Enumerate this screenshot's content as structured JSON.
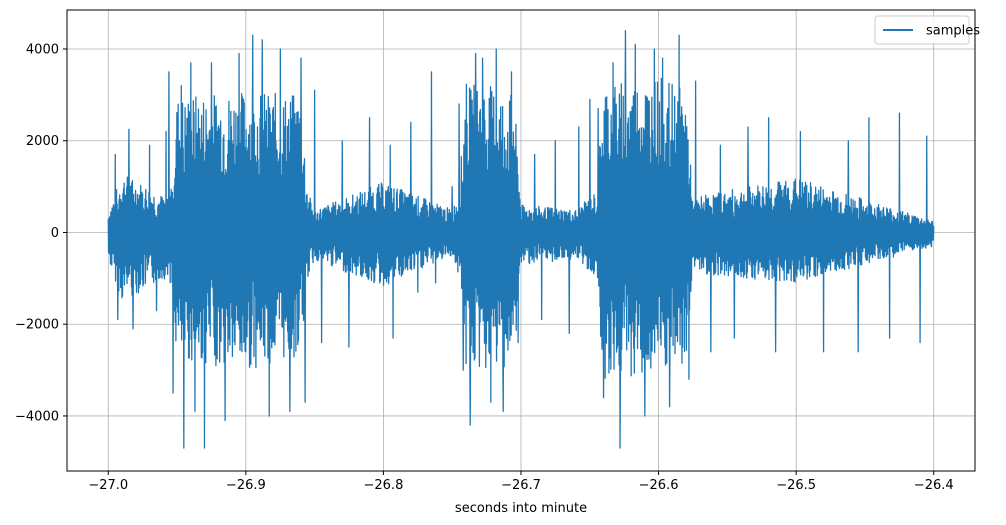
{
  "chart_data": {
    "type": "line",
    "title": "",
    "xlabel": "seconds into minute",
    "ylabel": "",
    "xlim": [
      -27.03,
      -26.37
    ],
    "ylim": [
      -5200,
      4850
    ],
    "xticks": [
      -27.0,
      -26.9,
      -26.8,
      -26.7,
      -26.6,
      -26.5,
      -26.4
    ],
    "xtick_labels": [
      "−27.0",
      "−26.9",
      "−26.8",
      "−26.7",
      "−26.6",
      "−26.5",
      "−26.4"
    ],
    "yticks": [
      -4000,
      -2000,
      0,
      2000,
      4000
    ],
    "ytick_labels": [
      "−4000",
      "−2000",
      "0",
      "2000",
      "4000"
    ],
    "grid": true,
    "legend": {
      "position": "top-right",
      "entries": [
        "samples"
      ]
    },
    "series": [
      {
        "name": "samples",
        "color": "#1f77b4",
        "x_range": [
          -27.0,
          -26.4
        ],
        "envelope": {
          "x": [
            -27.0,
            -26.99,
            -26.97,
            -26.96,
            -26.955,
            -26.95,
            -26.9,
            -26.86,
            -26.855,
            -26.85,
            -26.8,
            -26.75,
            -26.745,
            -26.74,
            -26.72,
            -26.705,
            -26.7,
            -26.66,
            -26.645,
            -26.64,
            -26.6,
            -26.58,
            -26.575,
            -26.57,
            -26.5,
            -26.4
          ],
          "upper": [
            450,
            1300,
            1000,
            800,
            900,
            3000,
            3100,
            3000,
            900,
            500,
            1100,
            500,
            900,
            3300,
            3200,
            3000,
            600,
            500,
            900,
            3300,
            3400,
            3100,
            600,
            800,
            1200,
            250
          ],
          "lower": [
            -600,
            -1500,
            -1200,
            -1000,
            -1100,
            -2800,
            -3000,
            -2700,
            -1000,
            -600,
            -1200,
            -500,
            -1000,
            -3100,
            -3000,
            -2900,
            -700,
            -600,
            -1000,
            -3200,
            -3100,
            -3000,
            -700,
            -900,
            -1100,
            -300
          ]
        },
        "peaks": [
          [
            -26.995,
            1700
          ],
          [
            -26.993,
            -1900
          ],
          [
            -26.985,
            2250
          ],
          [
            -26.982,
            -2100
          ],
          [
            -26.97,
            1900
          ],
          [
            -26.965,
            -1700
          ],
          [
            -26.958,
            2200
          ],
          [
            -26.956,
            3500
          ],
          [
            -26.953,
            -3500
          ],
          [
            -26.947,
            3200
          ],
          [
            -26.945,
            -4700
          ],
          [
            -26.94,
            3700
          ],
          [
            -26.937,
            -3900
          ],
          [
            -26.93,
            -4700
          ],
          [
            -26.925,
            3700
          ],
          [
            -26.915,
            -4100
          ],
          [
            -26.905,
            3900
          ],
          [
            -26.895,
            4300
          ],
          [
            -26.888,
            4200
          ],
          [
            -26.883,
            -4000
          ],
          [
            -26.875,
            4000
          ],
          [
            -26.868,
            -3900
          ],
          [
            -26.86,
            3800
          ],
          [
            -26.857,
            -3700
          ],
          [
            -26.85,
            3100
          ],
          [
            -26.845,
            -2400
          ],
          [
            -26.83,
            2000
          ],
          [
            -26.825,
            -2500
          ],
          [
            -26.81,
            2500
          ],
          [
            -26.795,
            1900
          ],
          [
            -26.793,
            -2300
          ],
          [
            -26.78,
            2400
          ],
          [
            -26.775,
            -1300
          ],
          [
            -26.765,
            3500
          ],
          [
            -26.762,
            -1100
          ],
          [
            -26.75,
            1000
          ],
          [
            -26.745,
            2800
          ],
          [
            -26.742,
            -3000
          ],
          [
            -26.737,
            -4200
          ],
          [
            -26.733,
            3900
          ],
          [
            -26.728,
            3800
          ],
          [
            -26.722,
            -3700
          ],
          [
            -26.718,
            4000
          ],
          [
            -26.713,
            -3900
          ],
          [
            -26.707,
            3500
          ],
          [
            -26.702,
            -2400
          ],
          [
            -26.69,
            1700
          ],
          [
            -26.685,
            -1900
          ],
          [
            -26.675,
            2000
          ],
          [
            -26.665,
            -2200
          ],
          [
            -26.658,
            2300
          ],
          [
            -26.65,
            2900
          ],
          [
            -26.644,
            2700
          ],
          [
            -26.64,
            -3600
          ],
          [
            -26.633,
            3700
          ],
          [
            -26.628,
            -4700
          ],
          [
            -26.624,
            4400
          ],
          [
            -26.617,
            4100
          ],
          [
            -26.61,
            -4000
          ],
          [
            -26.603,
            4000
          ],
          [
            -26.597,
            3800
          ],
          [
            -26.592,
            -3800
          ],
          [
            -26.585,
            4300
          ],
          [
            -26.578,
            -3200
          ],
          [
            -26.573,
            3300
          ],
          [
            -26.562,
            -2600
          ],
          [
            -26.555,
            1900
          ],
          [
            -26.545,
            -2300
          ],
          [
            -26.535,
            2300
          ],
          [
            -26.52,
            2500
          ],
          [
            -26.515,
            -2600
          ],
          [
            -26.497,
            2200
          ],
          [
            -26.48,
            -2600
          ],
          [
            -26.462,
            2000
          ],
          [
            -26.455,
            -2600
          ],
          [
            -26.447,
            2500
          ],
          [
            -26.432,
            -2300
          ],
          [
            -26.425,
            2600
          ],
          [
            -26.41,
            -2400
          ],
          [
            -26.405,
            2100
          ]
        ]
      }
    ]
  }
}
